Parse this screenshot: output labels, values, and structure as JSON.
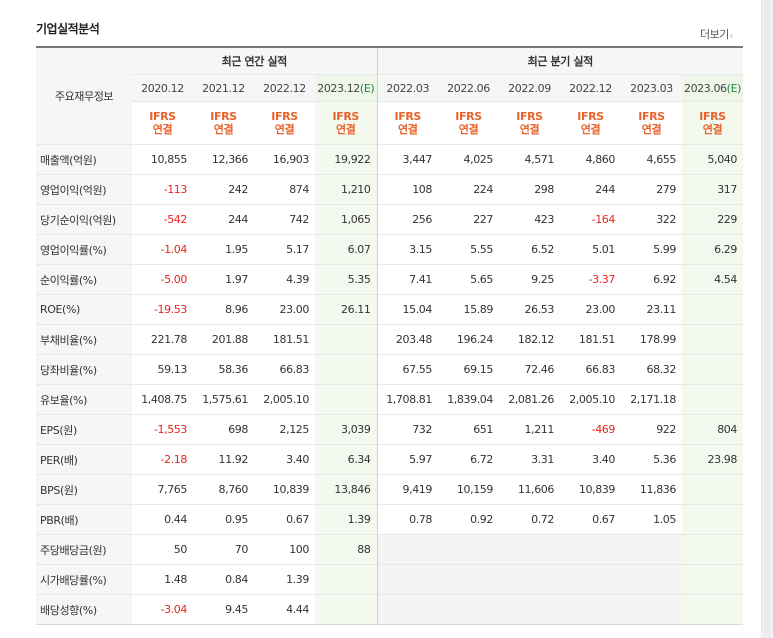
{
  "section": {
    "title": "기업실적분석",
    "more_label": "더보기",
    "more_arrow": "›"
  },
  "header": {
    "row_label": "주요재무정보",
    "annual_title": "최근 연간 실적",
    "quarterly_title": "최근 분기 실적",
    "annual_periods": [
      {
        "text": "2020.12",
        "est": ""
      },
      {
        "text": "2021.12",
        "est": ""
      },
      {
        "text": "2022.12",
        "est": ""
      },
      {
        "text": "2023.12",
        "est": "(E)"
      }
    ],
    "quarterly_periods": [
      {
        "text": "2022.03",
        "est": ""
      },
      {
        "text": "2022.06",
        "est": ""
      },
      {
        "text": "2022.09",
        "est": ""
      },
      {
        "text": "2022.12",
        "est": ""
      },
      {
        "text": "2023.03",
        "est": ""
      },
      {
        "text": "2023.06",
        "est": "(E)"
      }
    ],
    "basis_line1": "IFRS",
    "basis_line2": "연결"
  },
  "rows": [
    {
      "label": "매출액(억원)",
      "values": [
        "10,855",
        "12,366",
        "16,903",
        "19,922",
        "3,447",
        "4,025",
        "4,571",
        "4,860",
        "4,655",
        "5,040"
      ]
    },
    {
      "label": "영업이익(억원)",
      "values": [
        "-113",
        "242",
        "874",
        "1,210",
        "108",
        "224",
        "298",
        "244",
        "279",
        "317"
      ]
    },
    {
      "label": "당기순이익(억원)",
      "values": [
        "-542",
        "244",
        "742",
        "1,065",
        "256",
        "227",
        "423",
        "-164",
        "322",
        "229"
      ]
    },
    {
      "label": "영업이익률(%)",
      "values": [
        "-1.04",
        "1.95",
        "5.17",
        "6.07",
        "3.15",
        "5.55",
        "6.52",
        "5.01",
        "5.99",
        "6.29"
      ]
    },
    {
      "label": "순이익률(%)",
      "values": [
        "-5.00",
        "1.97",
        "4.39",
        "5.35",
        "7.41",
        "5.65",
        "9.25",
        "-3.37",
        "6.92",
        "4.54"
      ]
    },
    {
      "label": "ROE(%)",
      "values": [
        "-19.53",
        "8.96",
        "23.00",
        "26.11",
        "15.04",
        "15.89",
        "26.53",
        "23.00",
        "23.11",
        ""
      ]
    },
    {
      "label": "부채비율(%)",
      "values": [
        "221.78",
        "201.88",
        "181.51",
        "",
        "203.48",
        "196.24",
        "182.12",
        "181.51",
        "178.99",
        ""
      ]
    },
    {
      "label": "당좌비율(%)",
      "values": [
        "59.13",
        "58.36",
        "66.83",
        "",
        "67.55",
        "69.15",
        "72.46",
        "66.83",
        "68.32",
        ""
      ]
    },
    {
      "label": "유보율(%)",
      "values": [
        "1,408.75",
        "1,575.61",
        "2,005.10",
        "",
        "1,708.81",
        "1,839.04",
        "2,081.26",
        "2,005.10",
        "2,171.18",
        ""
      ]
    },
    {
      "label": "EPS(원)",
      "values": [
        "-1,553",
        "698",
        "2,125",
        "3,039",
        "732",
        "651",
        "1,211",
        "-469",
        "922",
        "804"
      ]
    },
    {
      "label": "PER(배)",
      "values": [
        "-2.18",
        "11.92",
        "3.40",
        "6.34",
        "5.97",
        "6.72",
        "3.31",
        "3.40",
        "5.36",
        "23.98"
      ]
    },
    {
      "label": "BPS(원)",
      "values": [
        "7,765",
        "8,760",
        "10,839",
        "13,846",
        "9,419",
        "10,159",
        "11,606",
        "10,839",
        "11,836",
        ""
      ]
    },
    {
      "label": "PBR(배)",
      "values": [
        "0.44",
        "0.95",
        "0.67",
        "1.39",
        "0.78",
        "0.92",
        "0.72",
        "0.67",
        "1.05",
        ""
      ]
    },
    {
      "label": "주당배당금(원)",
      "values": [
        "50",
        "70",
        "100",
        "88",
        "",
        "",
        "",
        "",
        "",
        ""
      ]
    },
    {
      "label": "시가배당률(%)",
      "values": [
        "1.48",
        "0.84",
        "1.39",
        "",
        "",
        "",
        "",
        "",
        "",
        ""
      ]
    },
    {
      "label": "배당성향(%)",
      "values": [
        "-3.04",
        "9.45",
        "4.44",
        "",
        "",
        "",
        "",
        "",
        "",
        ""
      ]
    }
  ],
  "colors": {
    "negative": "#e8241c",
    "ifrs": "#e8632b",
    "estimate": "#1c8a3a",
    "estimate_bg": "#f3f9ef"
  }
}
